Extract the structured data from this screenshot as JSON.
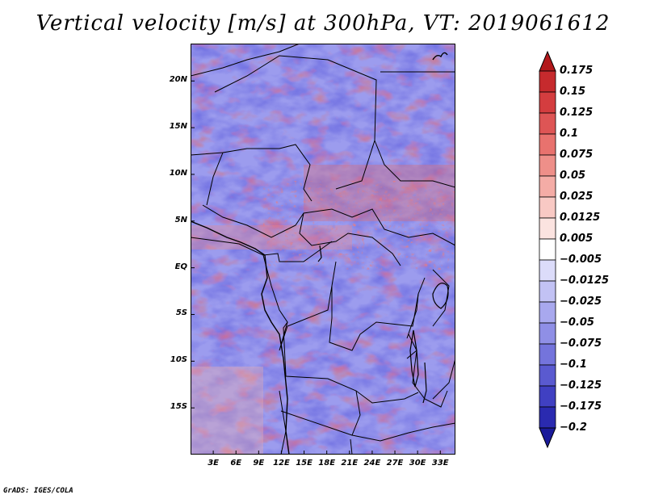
{
  "title": "Vertical velocity [m/s] at 300hPa, VT: 2019061612",
  "credit": "GrADS: IGES/COLA",
  "map": {
    "lat_range": [
      -20,
      24
    ],
    "lon_range": [
      0,
      35
    ],
    "lat_ticks": [
      {
        "value": 20,
        "label": "20N"
      },
      {
        "value": 15,
        "label": "15N"
      },
      {
        "value": 10,
        "label": "10N"
      },
      {
        "value": 5,
        "label": "5N"
      },
      {
        "value": 0,
        "label": "EQ"
      },
      {
        "value": -5,
        "label": "5S"
      },
      {
        "value": -10,
        "label": "10S"
      },
      {
        "value": -15,
        "label": "15S"
      }
    ],
    "lon_ticks": [
      {
        "value": 3,
        "label": "3E"
      },
      {
        "value": 6,
        "label": "6E"
      },
      {
        "value": 9,
        "label": "9E"
      },
      {
        "value": 12,
        "label": "12E"
      },
      {
        "value": 15,
        "label": "15E"
      },
      {
        "value": 18,
        "label": "18E"
      },
      {
        "value": 21,
        "label": "21E"
      },
      {
        "value": 24,
        "label": "24E"
      },
      {
        "value": 27,
        "label": "27E"
      },
      {
        "value": 30,
        "label": "30E"
      },
      {
        "value": 33,
        "label": "33E"
      }
    ]
  },
  "colorbar": {
    "levels": [
      "0.175",
      "0.15",
      "0.125",
      "0.1",
      "0.075",
      "0.05",
      "0.025",
      "0.0125",
      "0.005",
      "−0.005",
      "−0.0125",
      "−0.025",
      "−0.05",
      "−0.075",
      "−0.1",
      "−0.125",
      "−0.175",
      "−0.2"
    ],
    "colors": [
      "#b2181b",
      "#c62a2d",
      "#d43d3f",
      "#de5555",
      "#e8726e",
      "#ee8f89",
      "#f4aca6",
      "#f8c9c4",
      "#fbe3e0",
      "#ffffff",
      "#dcdcfa",
      "#c2c2f4",
      "#a8a8ee",
      "#8f8fe6",
      "#7474dc",
      "#5a5ad0",
      "#4040c2",
      "#2a2ab0",
      "#1a1a9a"
    ]
  }
}
